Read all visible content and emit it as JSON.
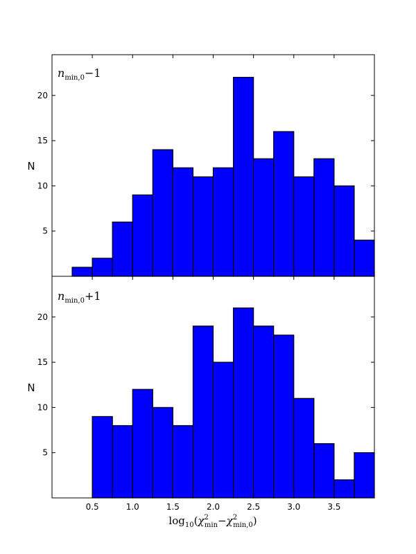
{
  "chart_data": [
    {
      "type": "histogram",
      "annotation": {
        "var": "n",
        "sub": "min,0",
        "op": "−1"
      },
      "ylabel": "N",
      "bin_edges": [
        0.0,
        0.25,
        0.5,
        0.75,
        1.0,
        1.25,
        1.5,
        1.75,
        2.0,
        2.25,
        2.5,
        2.75,
        3.0,
        3.25,
        3.5,
        3.75,
        4.0
      ],
      "counts": [
        0,
        1,
        2,
        6,
        9,
        14,
        12,
        11,
        12,
        22,
        13,
        16,
        11,
        13,
        10,
        4
      ],
      "xlim": [
        0.0,
        4.0
      ],
      "ylim": [
        0,
        24.5
      ],
      "yticks": [
        5,
        10,
        15,
        20
      ],
      "xticks": [
        0.5,
        1.0,
        1.5,
        2.0,
        2.5,
        3.0,
        3.5
      ],
      "show_xtick_labels": false,
      "bar_color": "#0000ff",
      "edge_color": "#000000",
      "grid": false
    },
    {
      "type": "histogram",
      "annotation": {
        "var": "n",
        "sub": "min,0",
        "op": "+1"
      },
      "ylabel": "N",
      "bin_edges": [
        0.0,
        0.25,
        0.5,
        0.75,
        1.0,
        1.25,
        1.5,
        1.75,
        2.0,
        2.25,
        2.5,
        2.75,
        3.0,
        3.25,
        3.5,
        3.75,
        4.0
      ],
      "counts": [
        0,
        0,
        9,
        8,
        12,
        10,
        8,
        19,
        15,
        21,
        19,
        18,
        11,
        6,
        2,
        5
      ],
      "xlim": [
        0.0,
        4.0
      ],
      "ylim": [
        0,
        24.5
      ],
      "yticks": [
        5,
        10,
        15,
        20
      ],
      "xticks": [
        0.5,
        1.0,
        1.5,
        2.0,
        2.5,
        3.0,
        3.5
      ],
      "xtick_labels": [
        "0.5",
        "1.0",
        "1.5",
        "2.0",
        "2.5",
        "3.0",
        "3.5"
      ],
      "show_xtick_labels": true,
      "xlabel": {
        "base": "log",
        "base_sub": "10",
        "open": "(",
        "chi1_sup": "2",
        "chi1_sub": "min",
        "minus": "−",
        "chi2_sup": "2",
        "chi2_sub": "min,0",
        "close": ")"
      },
      "bar_color": "#0000ff",
      "edge_color": "#000000",
      "grid": false
    }
  ]
}
